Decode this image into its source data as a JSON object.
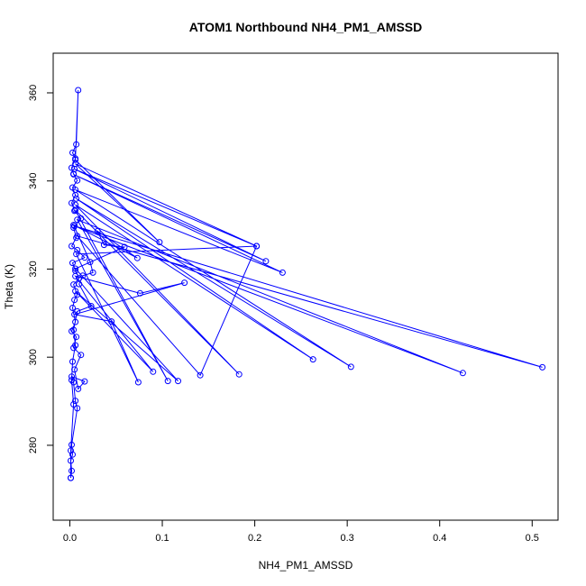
{
  "chart_data": {
    "type": "line",
    "title": "ATOM1 Northbound NH4_PM1_AMSSD",
    "xlabel": "NH4_PM1_AMSSD",
    "ylabel": "Theta (K)",
    "xlim": [
      -0.018,
      0.528
    ],
    "ylim": [
      263,
      369
    ],
    "xticks": [
      0.0,
      0.1,
      0.2,
      0.3,
      0.4,
      0.5
    ],
    "xtick_labels": [
      "0.0",
      "0.1",
      "0.2",
      "0.3",
      "0.4",
      "0.5"
    ],
    "yticks": [
      280,
      300,
      320,
      340,
      360
    ],
    "ytick_labels": [
      "280",
      "300",
      "320",
      "340",
      "360"
    ],
    "grid": false,
    "series": [
      {
        "color": "#0000ff",
        "marker": "open-circle",
        "points": [
          [
            0.001,
            272.6
          ],
          [
            0.002,
            274.2
          ],
          [
            0.001,
            276.5
          ],
          [
            0.003,
            277.9
          ],
          [
            0.002,
            280.1
          ],
          [
            0.008,
            288.4
          ],
          [
            0.006,
            290.1
          ],
          [
            0.004,
            294.3
          ],
          [
            0.002,
            295.6
          ],
          [
            0.016,
            294.5
          ],
          [
            0.009,
            292.8
          ],
          [
            0.005,
            297.2
          ],
          [
            0.012,
            300.5
          ],
          [
            0.004,
            302.1
          ],
          [
            0.007,
            304.6
          ],
          [
            0.002,
            305.9
          ],
          [
            0.006,
            308.0
          ],
          [
            0.003,
            311.2
          ],
          [
            0.005,
            313.0
          ],
          [
            0.008,
            314.2
          ],
          [
            0.004,
            316.5
          ],
          [
            0.01,
            317.9
          ],
          [
            0.006,
            319.6
          ],
          [
            0.003,
            321.4
          ],
          [
            0.016,
            322.6
          ],
          [
            0.008,
            324.3
          ],
          [
            0.002,
            325.2
          ],
          [
            0.007,
            327.1
          ],
          [
            0.004,
            329.4
          ],
          [
            0.012,
            331.5
          ],
          [
            0.005,
            333.2
          ],
          [
            0.002,
            335.0
          ],
          [
            0.006,
            336.8
          ],
          [
            0.003,
            338.5
          ],
          [
            0.008,
            340.1
          ],
          [
            0.004,
            341.6
          ],
          [
            0.002,
            343.0
          ],
          [
            0.006,
            345.1
          ],
          [
            0.003,
            346.4
          ],
          [
            0.007,
            348.3
          ],
          [
            0.009,
            360.6
          ],
          [
            0.006,
            344.8
          ],
          [
            0.097,
            326.1
          ],
          [
            0.006,
            343.9
          ],
          [
            0.202,
            325.2
          ],
          [
            0.005,
            342.7
          ],
          [
            0.212,
            321.8
          ],
          [
            0.004,
            341.5
          ],
          [
            0.23,
            319.2
          ],
          [
            0.006,
            338.0
          ],
          [
            0.304,
            297.8
          ],
          [
            0.007,
            336.0
          ],
          [
            0.263,
            299.5
          ],
          [
            0.006,
            334.6
          ],
          [
            0.183,
            296.1
          ],
          [
            0.006,
            333.4
          ],
          [
            0.106,
            294.6
          ],
          [
            0.008,
            331.2
          ],
          [
            0.425,
            296.4
          ],
          [
            0.005,
            329.8
          ],
          [
            0.511,
            297.7
          ],
          [
            0.008,
            327.5
          ],
          [
            0.141,
            295.9
          ],
          [
            0.202,
            325.2
          ],
          [
            0.007,
            323.4
          ],
          [
            0.074,
            294.3
          ],
          [
            0.045,
            308.1
          ],
          [
            0.005,
            309.7
          ],
          [
            0.124,
            316.9
          ],
          [
            0.076,
            314.5
          ],
          [
            0.006,
            318.4
          ],
          [
            0.09,
            296.7
          ],
          [
            0.006,
            315.0
          ],
          [
            0.117,
            294.6
          ],
          [
            0.006,
            320.1
          ],
          [
            0.059,
            325.0
          ],
          [
            0.037,
            325.5
          ],
          [
            0.03,
            328.6
          ],
          [
            0.073,
            322.5
          ],
          [
            0.004,
            330.0
          ],
          [
            0.022,
            321.6
          ],
          [
            0.025,
            319.2
          ],
          [
            0.014,
            318.5
          ],
          [
            0.01,
            316.6
          ],
          [
            0.023,
            311.6
          ],
          [
            0.008,
            310.4
          ],
          [
            0.004,
            306.2
          ],
          [
            0.006,
            302.7
          ],
          [
            0.003,
            299.0
          ],
          [
            0.002,
            294.8
          ],
          [
            0.004,
            289.3
          ],
          [
            0.001,
            278.8
          ],
          [
            0.001,
            272.6
          ]
        ]
      }
    ]
  }
}
